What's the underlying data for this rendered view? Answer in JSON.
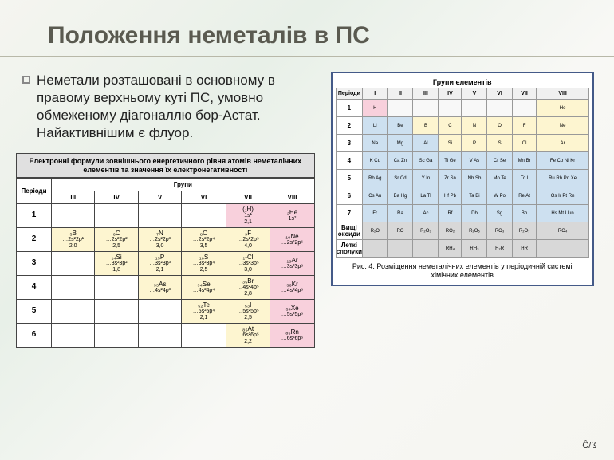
{
  "title": "Положення неметалів в ПС",
  "paragraph": "Неметали розташовані в основному в правому верхньому куті ПС, умовно обмеженому діагоналлю бор-Астат. Найактивнішим є флуор.",
  "corner": "Ĉ/ß",
  "small_table": {
    "caption": "Електронні формули зовнішнього енергетичного рівня атомів неметалічних елементів та значення їх електронегативності",
    "header_period": "Періоди",
    "header_groups": "Групи",
    "group_labels": [
      "III",
      "IV",
      "V",
      "VI",
      "VII",
      "VIII"
    ],
    "rows": [
      {
        "p": "1",
        "cells": [
          null,
          null,
          null,
          null,
          {
            "sym": "(₁H)",
            "conf": "1s¹",
            "en": "2,1",
            "class": "cell-pink"
          },
          {
            "sym": "₂He",
            "conf": "1s²",
            "en": "",
            "class": "cell-pink"
          }
        ]
      },
      {
        "p": "2",
        "cells": [
          {
            "sym": "₅B",
            "conf": "…2s²2p¹",
            "en": "2,0",
            "class": "cell-yellow"
          },
          {
            "sym": "₆C",
            "conf": "…2s²2p²",
            "en": "2,5",
            "class": "cell-yellow"
          },
          {
            "sym": "₇N",
            "conf": "…2s²2p³",
            "en": "3,0",
            "class": "cell-yellow"
          },
          {
            "sym": "₈O",
            "conf": "…2s²2p⁴",
            "en": "3,5",
            "class": "cell-yellow"
          },
          {
            "sym": "₉F",
            "conf": "…2s²2p⁵",
            "en": "4,0",
            "class": "cell-yellow"
          },
          {
            "sym": "₁₀Ne",
            "conf": "…2s²2p⁶",
            "en": "",
            "class": "cell-pink"
          }
        ]
      },
      {
        "p": "3",
        "cells": [
          null,
          {
            "sym": "₁₄Si",
            "conf": "…3s²3p²",
            "en": "1,8",
            "class": "cell-yellow"
          },
          {
            "sym": "₁₅P",
            "conf": "…3s²3p³",
            "en": "2,1",
            "class": "cell-yellow"
          },
          {
            "sym": "₁₆S",
            "conf": "…3s²3p⁴",
            "en": "2,5",
            "class": "cell-yellow"
          },
          {
            "sym": "₁₇Cl",
            "conf": "…3s²3p⁵",
            "en": "3,0",
            "class": "cell-yellow"
          },
          {
            "sym": "₁₈Ar",
            "conf": "…3s²3p⁶",
            "en": "",
            "class": "cell-pink"
          }
        ]
      },
      {
        "p": "4",
        "cells": [
          null,
          null,
          {
            "sym": "₃₃As",
            "conf": "…4s²4p³",
            "en": "",
            "class": "cell-yellow"
          },
          {
            "sym": "₃₄Se",
            "conf": "…4s²4p⁴",
            "en": "",
            "class": "cell-yellow"
          },
          {
            "sym": "₃₅Br",
            "conf": "…4s²4p⁵",
            "en": "2,8",
            "class": "cell-yellow"
          },
          {
            "sym": "₃₆Kr",
            "conf": "…4s²4p⁶",
            "en": "",
            "class": "cell-pink"
          }
        ]
      },
      {
        "p": "5",
        "cells": [
          null,
          null,
          null,
          {
            "sym": "₅₂Te",
            "conf": "…5s²5p⁴",
            "en": "2,1",
            "class": "cell-yellow"
          },
          {
            "sym": "₅₃I",
            "conf": "…5s²5p⁵",
            "en": "2,5",
            "class": "cell-yellow"
          },
          {
            "sym": "₅₄Xe",
            "conf": "…5s²5p⁶",
            "en": "",
            "class": "cell-pink"
          }
        ]
      },
      {
        "p": "6",
        "cells": [
          null,
          null,
          null,
          null,
          {
            "sym": "₈₅At",
            "conf": "…6s²6p⁵",
            "en": "2,2",
            "class": "cell-yellow"
          },
          {
            "sym": "₈₆Rn",
            "conf": "…6s²6p⁶",
            "en": "",
            "class": "cell-pink"
          }
        ]
      }
    ]
  },
  "pt": {
    "top_label_periods": "Періоди",
    "top_label_groups": "Групи елементів",
    "group_labels": [
      "I",
      "II",
      "III",
      "IV",
      "V",
      "VI",
      "VII",
      "VIII"
    ],
    "footer": "Рис. 4. Розміщення неметалічних елементів у періодичній системі хімічних елементів",
    "periods": [
      {
        "p": "1",
        "cells": [
          "H",
          "",
          "",
          "",
          "",
          "",
          "",
          "He"
        ],
        "classes": [
          "pt-pink",
          "pt-blank",
          "pt-blank",
          "pt-blank",
          "pt-blank",
          "pt-blank",
          "pt-blank",
          "pt-yellow"
        ]
      },
      {
        "p": "2",
        "cells": [
          "Li",
          "Be",
          "B",
          "C",
          "N",
          "O",
          "F",
          "Ne"
        ],
        "classes": [
          "pt-blue",
          "pt-blue",
          "pt-yellow",
          "pt-yellow",
          "pt-yellow",
          "pt-yellow",
          "pt-yellow",
          "pt-yellow"
        ]
      },
      {
        "p": "3",
        "cells": [
          "Na",
          "Mg",
          "Al",
          "Si",
          "P",
          "S",
          "Cl",
          "Ar"
        ],
        "classes": [
          "pt-blue",
          "pt-blue",
          "pt-blue",
          "pt-yellow",
          "pt-yellow",
          "pt-yellow",
          "pt-yellow",
          "pt-yellow"
        ]
      },
      {
        "p": "4",
        "cells": [
          "K Cu",
          "Ca Zn",
          "Sc Ga",
          "Ti Ge",
          "V As",
          "Cr Se",
          "Mn Br",
          "Fe Co Ni Kr"
        ],
        "classes": [
          "pt-blue",
          "pt-blue",
          "pt-blue",
          "pt-blue",
          "pt-blue",
          "pt-blue",
          "pt-blue",
          "pt-blue"
        ]
      },
      {
        "p": "5",
        "cells": [
          "Rb Ag",
          "Sr Cd",
          "Y In",
          "Zr Sn",
          "Nb Sb",
          "Mo Te",
          "Tc I",
          "Ru Rh Pd Xe"
        ],
        "classes": [
          "pt-blue",
          "pt-blue",
          "pt-blue",
          "pt-blue",
          "pt-blue",
          "pt-blue",
          "pt-blue",
          "pt-blue"
        ]
      },
      {
        "p": "6",
        "cells": [
          "Cs Au",
          "Ba Hg",
          "La Tl",
          "Hf Pb",
          "Ta Bi",
          "W Po",
          "Re At",
          "Os Ir Pt Rn"
        ],
        "classes": [
          "pt-blue",
          "pt-blue",
          "pt-blue",
          "pt-blue",
          "pt-blue",
          "pt-blue",
          "pt-blue",
          "pt-blue"
        ]
      },
      {
        "p": "7",
        "cells": [
          "Fr",
          "Ra",
          "Ac",
          "Rf",
          "Db",
          "Sg",
          "Bh",
          "Hs Mt Uun"
        ],
        "classes": [
          "pt-blue",
          "pt-blue",
          "pt-blue",
          "pt-blue",
          "pt-blue",
          "pt-blue",
          "pt-blue",
          "pt-blue"
        ]
      }
    ],
    "oxide_row_label": "Вищі оксиди",
    "oxide_row": [
      "R₂O",
      "RO",
      "R₂O₃",
      "RO₂",
      "R₂O₅",
      "RO₃",
      "R₂O₇",
      "RO₄"
    ],
    "hydride_row_label": "Леткі сполуки",
    "hydride_row": [
      "",
      "",
      "",
      "RH₄",
      "RH₃",
      "H₂R",
      "HR",
      ""
    ]
  },
  "colors": {
    "title": "#5a5a50",
    "border": "#444444",
    "yellow": "#fdf5d0",
    "pink": "#f8d0dc",
    "blue": "#cde0f0",
    "pt_border": "#445a88"
  }
}
